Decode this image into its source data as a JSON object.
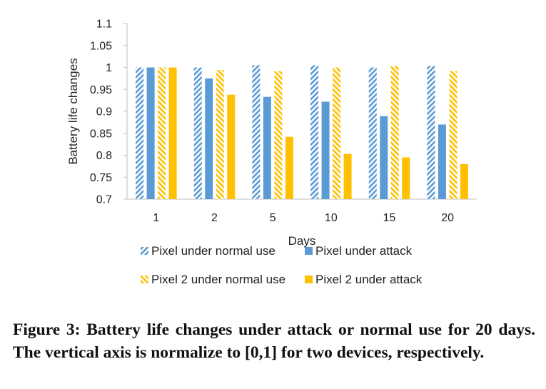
{
  "chart_data": {
    "type": "bar",
    "title": "",
    "xlabel": "Days",
    "ylabel": "Battery life changes",
    "categories": [
      "1",
      "2",
      "5",
      "10",
      "15",
      "20"
    ],
    "ylim": [
      0.7,
      1.1
    ],
    "yticks": [
      "0.7",
      "0.75",
      "0.8",
      "0.85",
      "0.9",
      "0.95",
      "1",
      "1.05",
      "1.1"
    ],
    "grid": false,
    "legend_position": "bottom",
    "series": [
      {
        "name": "Pixel under normal use",
        "values": [
          1.0,
          1.0,
          1.005,
          1.005,
          1.0,
          1.003
        ],
        "color": "#5B9BD5",
        "pattern": "hatched"
      },
      {
        "name": "Pixel under attack",
        "values": [
          1.0,
          0.975,
          0.933,
          0.922,
          0.889,
          0.87
        ],
        "color": "#5B9BD5",
        "pattern": "solid"
      },
      {
        "name": "Pixel 2 under normal use",
        "values": [
          1.0,
          0.994,
          0.992,
          1.0,
          1.003,
          0.992
        ],
        "color": "#FFC000",
        "pattern": "hatched"
      },
      {
        "name": "Pixel 2 under attack",
        "values": [
          1.0,
          0.938,
          0.842,
          0.803,
          0.795,
          0.78
        ],
        "color": "#FFC000",
        "pattern": "solid"
      }
    ]
  },
  "caption": "Figure 3: Battery life changes under attack or normal use for 20 days. The vertical axis is normalize to [0,1] for two devices, respectively."
}
